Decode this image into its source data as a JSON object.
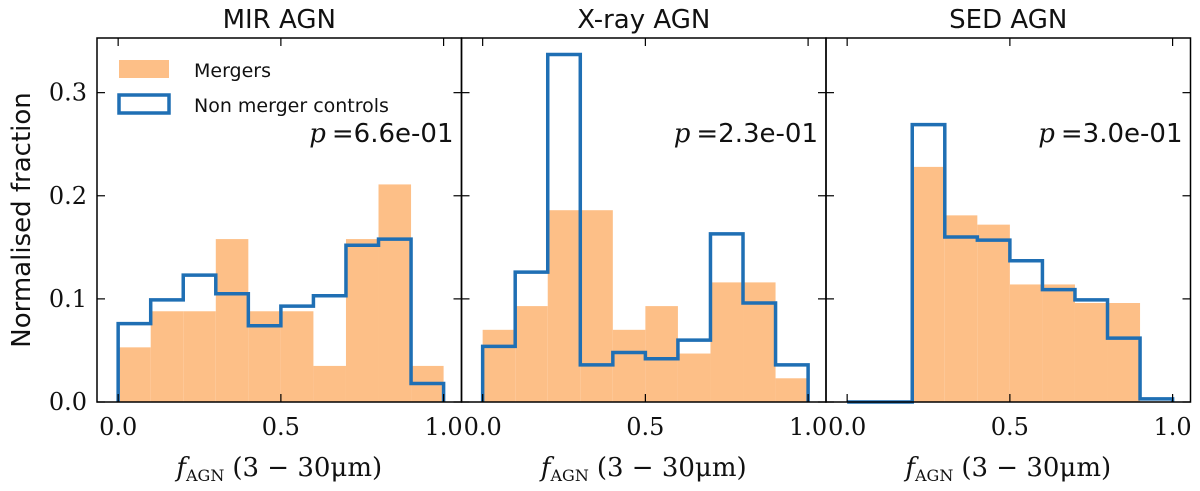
{
  "chart_data": {
    "type": "bar",
    "ylabel": "Normalised fraction",
    "ylim": [
      0,
      0.353
    ],
    "xlim": [
      -0.065,
      1.055
    ],
    "yticks": [
      "0.0",
      "0.1",
      "0.2",
      "0.3"
    ],
    "xticks": [
      "0.0",
      "0.5",
      "1.0"
    ],
    "xlabel": {
      "f": "f",
      "sub": "AGN",
      "rest": "(3 − 30μm)"
    },
    "bin_edges": [
      0.0,
      0.1,
      0.2,
      0.3,
      0.4,
      0.5,
      0.6,
      0.7,
      0.8,
      0.9,
      1.0
    ],
    "legend": {
      "placement": "top-left",
      "entries": [
        "Mergers",
        "Non merger controls"
      ]
    },
    "colors": {
      "mergers": "#fdbf87",
      "controls": "#1f6fb4"
    },
    "panels": [
      {
        "title": "MIR AGN",
        "p_label": "p",
        "p_value": "=6.6e-01",
        "series": [
          {
            "name": "Mergers",
            "values": [
              0.053,
              0.088,
              0.088,
              0.158,
              0.088,
              0.088,
              0.035,
              0.158,
              0.211,
              0.035
            ]
          },
          {
            "name": "Non merger controls",
            "values": [
              0.076,
              0.099,
              0.123,
              0.105,
              0.074,
              0.093,
              0.103,
              0.152,
              0.158,
              0.018
            ]
          }
        ]
      },
      {
        "title": "X-ray AGN",
        "p_label": "p",
        "p_value": "=2.3e-01",
        "series": [
          {
            "name": "Mergers",
            "values": [
              0.07,
              0.093,
              0.186,
              0.186,
              0.07,
              0.093,
              0.047,
              0.116,
              0.116,
              0.023
            ]
          },
          {
            "name": "Non merger controls",
            "values": [
              0.054,
              0.126,
              0.337,
              0.036,
              0.048,
              0.042,
              0.06,
              0.163,
              0.096,
              0.036
            ]
          }
        ]
      },
      {
        "title": "SED AGN",
        "p_label": "p",
        "p_value": "=3.0e-01",
        "series": [
          {
            "name": "Mergers",
            "values": [
              0,
              0,
              0.228,
              0.181,
              0.172,
              0.114,
              0.114,
              0.096,
              0.096,
              0
            ]
          },
          {
            "name": "Non merger controls",
            "values": [
              0,
              0,
              0.269,
              0.16,
              0.157,
              0.137,
              0.109,
              0.099,
              0.062,
              0.003
            ]
          }
        ]
      }
    ]
  }
}
